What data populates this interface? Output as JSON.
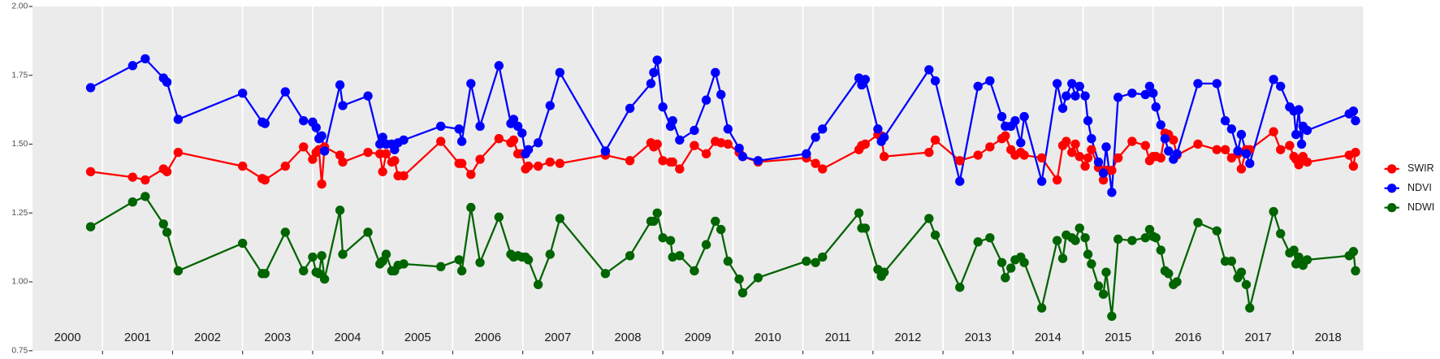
{
  "chart_data": {
    "type": "line",
    "xlim": [
      2000,
      2019
    ],
    "xticks": [
      2001,
      2002,
      2003,
      2004,
      2005,
      2006,
      2007,
      2008,
      2009,
      2010,
      2011,
      2012,
      2013,
      2014,
      2015,
      2016,
      2017,
      2018
    ],
    "year_labels": [
      "2000",
      "2001",
      "2002",
      "2003",
      "2004",
      "2005",
      "2006",
      "2007",
      "2008",
      "2009",
      "2010",
      "2011",
      "2012",
      "2013",
      "2014",
      "2015",
      "2016",
      "2017",
      "2018"
    ],
    "ylim": [
      0.75,
      2.0
    ],
    "yticks": [
      0.75,
      {
        "value": 1.0,
        "label": "1.00"
      },
      {
        "value": 1.25,
        "label": "1.25"
      },
      {
        "value": 1.5,
        "label": "1.50"
      },
      {
        "value": 1.75,
        "label": "1.75"
      },
      {
        "value": 2.0,
        "label": "2.00"
      }
    ],
    "grid": "x",
    "legend": "right",
    "x": [
      2000.83,
      2001.43,
      2001.61,
      2001.87,
      2001.92,
      2002.08,
      2003.0,
      2003.28,
      2003.32,
      2003.61,
      2003.87,
      2004.0,
      2004.05,
      2004.09,
      2004.13,
      2004.17,
      2004.39,
      2004.43,
      2004.79,
      2004.96,
      2005.0,
      2005.05,
      2005.13,
      2005.17,
      2005.22,
      2005.3,
      2005.83,
      2006.09,
      2006.13,
      2006.26,
      2006.39,
      2006.66,
      2006.83,
      2006.87,
      2006.93,
      2006.99,
      2007.04,
      2007.08,
      2007.22,
      2007.39,
      2007.53,
      2008.18,
      2008.53,
      2008.83,
      2008.87,
      2008.92,
      2009.0,
      2009.11,
      2009.14,
      2009.24,
      2009.45,
      2009.62,
      2009.75,
      2009.83,
      2009.93,
      2010.09,
      2010.14,
      2010.36,
      2011.05,
      2011.18,
      2011.28,
      2011.8,
      2011.84,
      2011.89,
      2012.07,
      2012.12,
      2012.16,
      2012.8,
      2012.89,
      2013.24,
      2013.5,
      2013.67,
      2013.84,
      2013.89,
      2013.97,
      2014.03,
      2014.11,
      2014.16,
      2014.41,
      2014.63,
      2014.71,
      2014.76,
      2014.84,
      2014.89,
      2014.95,
      2015.03,
      2015.07,
      2015.12,
      2015.22,
      2015.29,
      2015.33,
      2015.41,
      2015.5,
      2015.7,
      2015.89,
      2015.95,
      2016.0,
      2016.04,
      2016.11,
      2016.17,
      2016.22,
      2016.29,
      2016.34,
      2016.64,
      2016.91,
      2017.03,
      2017.12,
      2017.21,
      2017.26,
      2017.33,
      2017.38,
      2017.72,
      2017.82,
      2017.95,
      2018.01,
      2018.04,
      2018.08,
      2018.12,
      2018.14,
      2018.2,
      2018.8,
      2018.86,
      2018.89
    ],
    "series": [
      {
        "name": "SWIR",
        "color": "#ff0000",
        "values": [
          1.4,
          1.38,
          1.37,
          1.41,
          1.4,
          1.47,
          1.42,
          1.375,
          1.37,
          1.42,
          1.49,
          1.445,
          1.47,
          1.48,
          1.355,
          1.49,
          1.46,
          1.435,
          1.47,
          1.465,
          1.4,
          1.465,
          1.435,
          1.44,
          1.385,
          1.385,
          1.51,
          1.43,
          1.43,
          1.39,
          1.445,
          1.52,
          1.505,
          1.515,
          1.465,
          1.465,
          1.41,
          1.42,
          1.42,
          1.435,
          1.43,
          1.46,
          1.44,
          1.505,
          1.49,
          1.5,
          1.44,
          1.435,
          1.435,
          1.41,
          1.495,
          1.465,
          1.51,
          1.505,
          1.5,
          1.47,
          1.455,
          1.435,
          1.45,
          1.43,
          1.41,
          1.48,
          1.495,
          1.5,
          1.535,
          1.53,
          1.455,
          1.47,
          1.515,
          1.44,
          1.46,
          1.49,
          1.52,
          1.53,
          1.48,
          1.46,
          1.47,
          1.46,
          1.45,
          1.37,
          1.495,
          1.51,
          1.47,
          1.5,
          1.455,
          1.42,
          1.45,
          1.48,
          1.415,
          1.37,
          1.405,
          1.405,
          1.45,
          1.51,
          1.495,
          1.44,
          1.455,
          1.455,
          1.45,
          1.54,
          1.535,
          1.515,
          1.46,
          1.5,
          1.48,
          1.48,
          1.45,
          1.465,
          1.41,
          1.48,
          1.48,
          1.545,
          1.48,
          1.495,
          1.455,
          1.445,
          1.425,
          1.44,
          1.455,
          1.435,
          1.46,
          1.42,
          1.47
        ]
      },
      {
        "name": "NDVI",
        "color": "#0000ff",
        "values": [
          1.705,
          1.785,
          1.81,
          1.74,
          1.725,
          1.59,
          1.685,
          1.58,
          1.575,
          1.69,
          1.585,
          1.58,
          1.56,
          1.52,
          1.53,
          1.475,
          1.715,
          1.64,
          1.675,
          1.5,
          1.525,
          1.5,
          1.5,
          1.48,
          1.505,
          1.515,
          1.565,
          1.555,
          1.51,
          1.72,
          1.565,
          1.785,
          1.575,
          1.59,
          1.565,
          1.54,
          1.465,
          1.48,
          1.505,
          1.64,
          1.76,
          1.475,
          1.63,
          1.72,
          1.76,
          1.805,
          1.635,
          1.565,
          1.585,
          1.515,
          1.55,
          1.66,
          1.76,
          1.68,
          1.555,
          1.485,
          1.455,
          1.44,
          1.465,
          1.525,
          1.555,
          1.74,
          1.715,
          1.735,
          1.555,
          1.51,
          1.525,
          1.77,
          1.73,
          1.365,
          1.71,
          1.73,
          1.6,
          1.565,
          1.565,
          1.585,
          1.505,
          1.6,
          1.365,
          1.72,
          1.63,
          1.675,
          1.72,
          1.675,
          1.71,
          1.675,
          1.585,
          1.52,
          1.435,
          1.395,
          1.49,
          1.325,
          1.67,
          1.685,
          1.68,
          1.71,
          1.685,
          1.635,
          1.57,
          1.52,
          1.475,
          1.445,
          1.465,
          1.72,
          1.72,
          1.585,
          1.555,
          1.475,
          1.535,
          1.465,
          1.43,
          1.735,
          1.71,
          1.635,
          1.62,
          1.535,
          1.625,
          1.5,
          1.565,
          1.55,
          1.61,
          1.62,
          1.585
        ]
      },
      {
        "name": "NDWI",
        "color": "#006400",
        "values": [
          1.2,
          1.29,
          1.31,
          1.21,
          1.18,
          1.04,
          1.14,
          1.03,
          1.03,
          1.18,
          1.04,
          1.09,
          1.035,
          1.03,
          1.095,
          1.01,
          1.26,
          1.1,
          1.18,
          1.065,
          1.075,
          1.1,
          1.04,
          1.04,
          1.06,
          1.065,
          1.055,
          1.08,
          1.04,
          1.27,
          1.07,
          1.235,
          1.1,
          1.09,
          1.095,
          1.09,
          1.09,
          1.08,
          0.99,
          1.1,
          1.23,
          1.03,
          1.095,
          1.22,
          1.22,
          1.25,
          1.16,
          1.15,
          1.09,
          1.095,
          1.04,
          1.135,
          1.22,
          1.19,
          1.075,
          1.01,
          0.96,
          1.015,
          1.075,
          1.07,
          1.09,
          1.25,
          1.195,
          1.195,
          1.045,
          1.02,
          1.035,
          1.23,
          1.17,
          0.98,
          1.145,
          1.16,
          1.07,
          1.015,
          1.05,
          1.08,
          1.09,
          1.07,
          0.905,
          1.15,
          1.085,
          1.17,
          1.16,
          1.15,
          1.195,
          1.16,
          1.1,
          1.065,
          0.985,
          0.955,
          1.035,
          0.875,
          1.155,
          1.15,
          1.16,
          1.19,
          1.165,
          1.16,
          1.115,
          1.04,
          1.03,
          0.99,
          1.0,
          1.215,
          1.185,
          1.075,
          1.075,
          1.015,
          1.035,
          0.99,
          0.905,
          1.255,
          1.175,
          1.105,
          1.115,
          1.065,
          1.09,
          1.07,
          1.06,
          1.08,
          1.095,
          1.11,
          1.04
        ]
      }
    ]
  }
}
